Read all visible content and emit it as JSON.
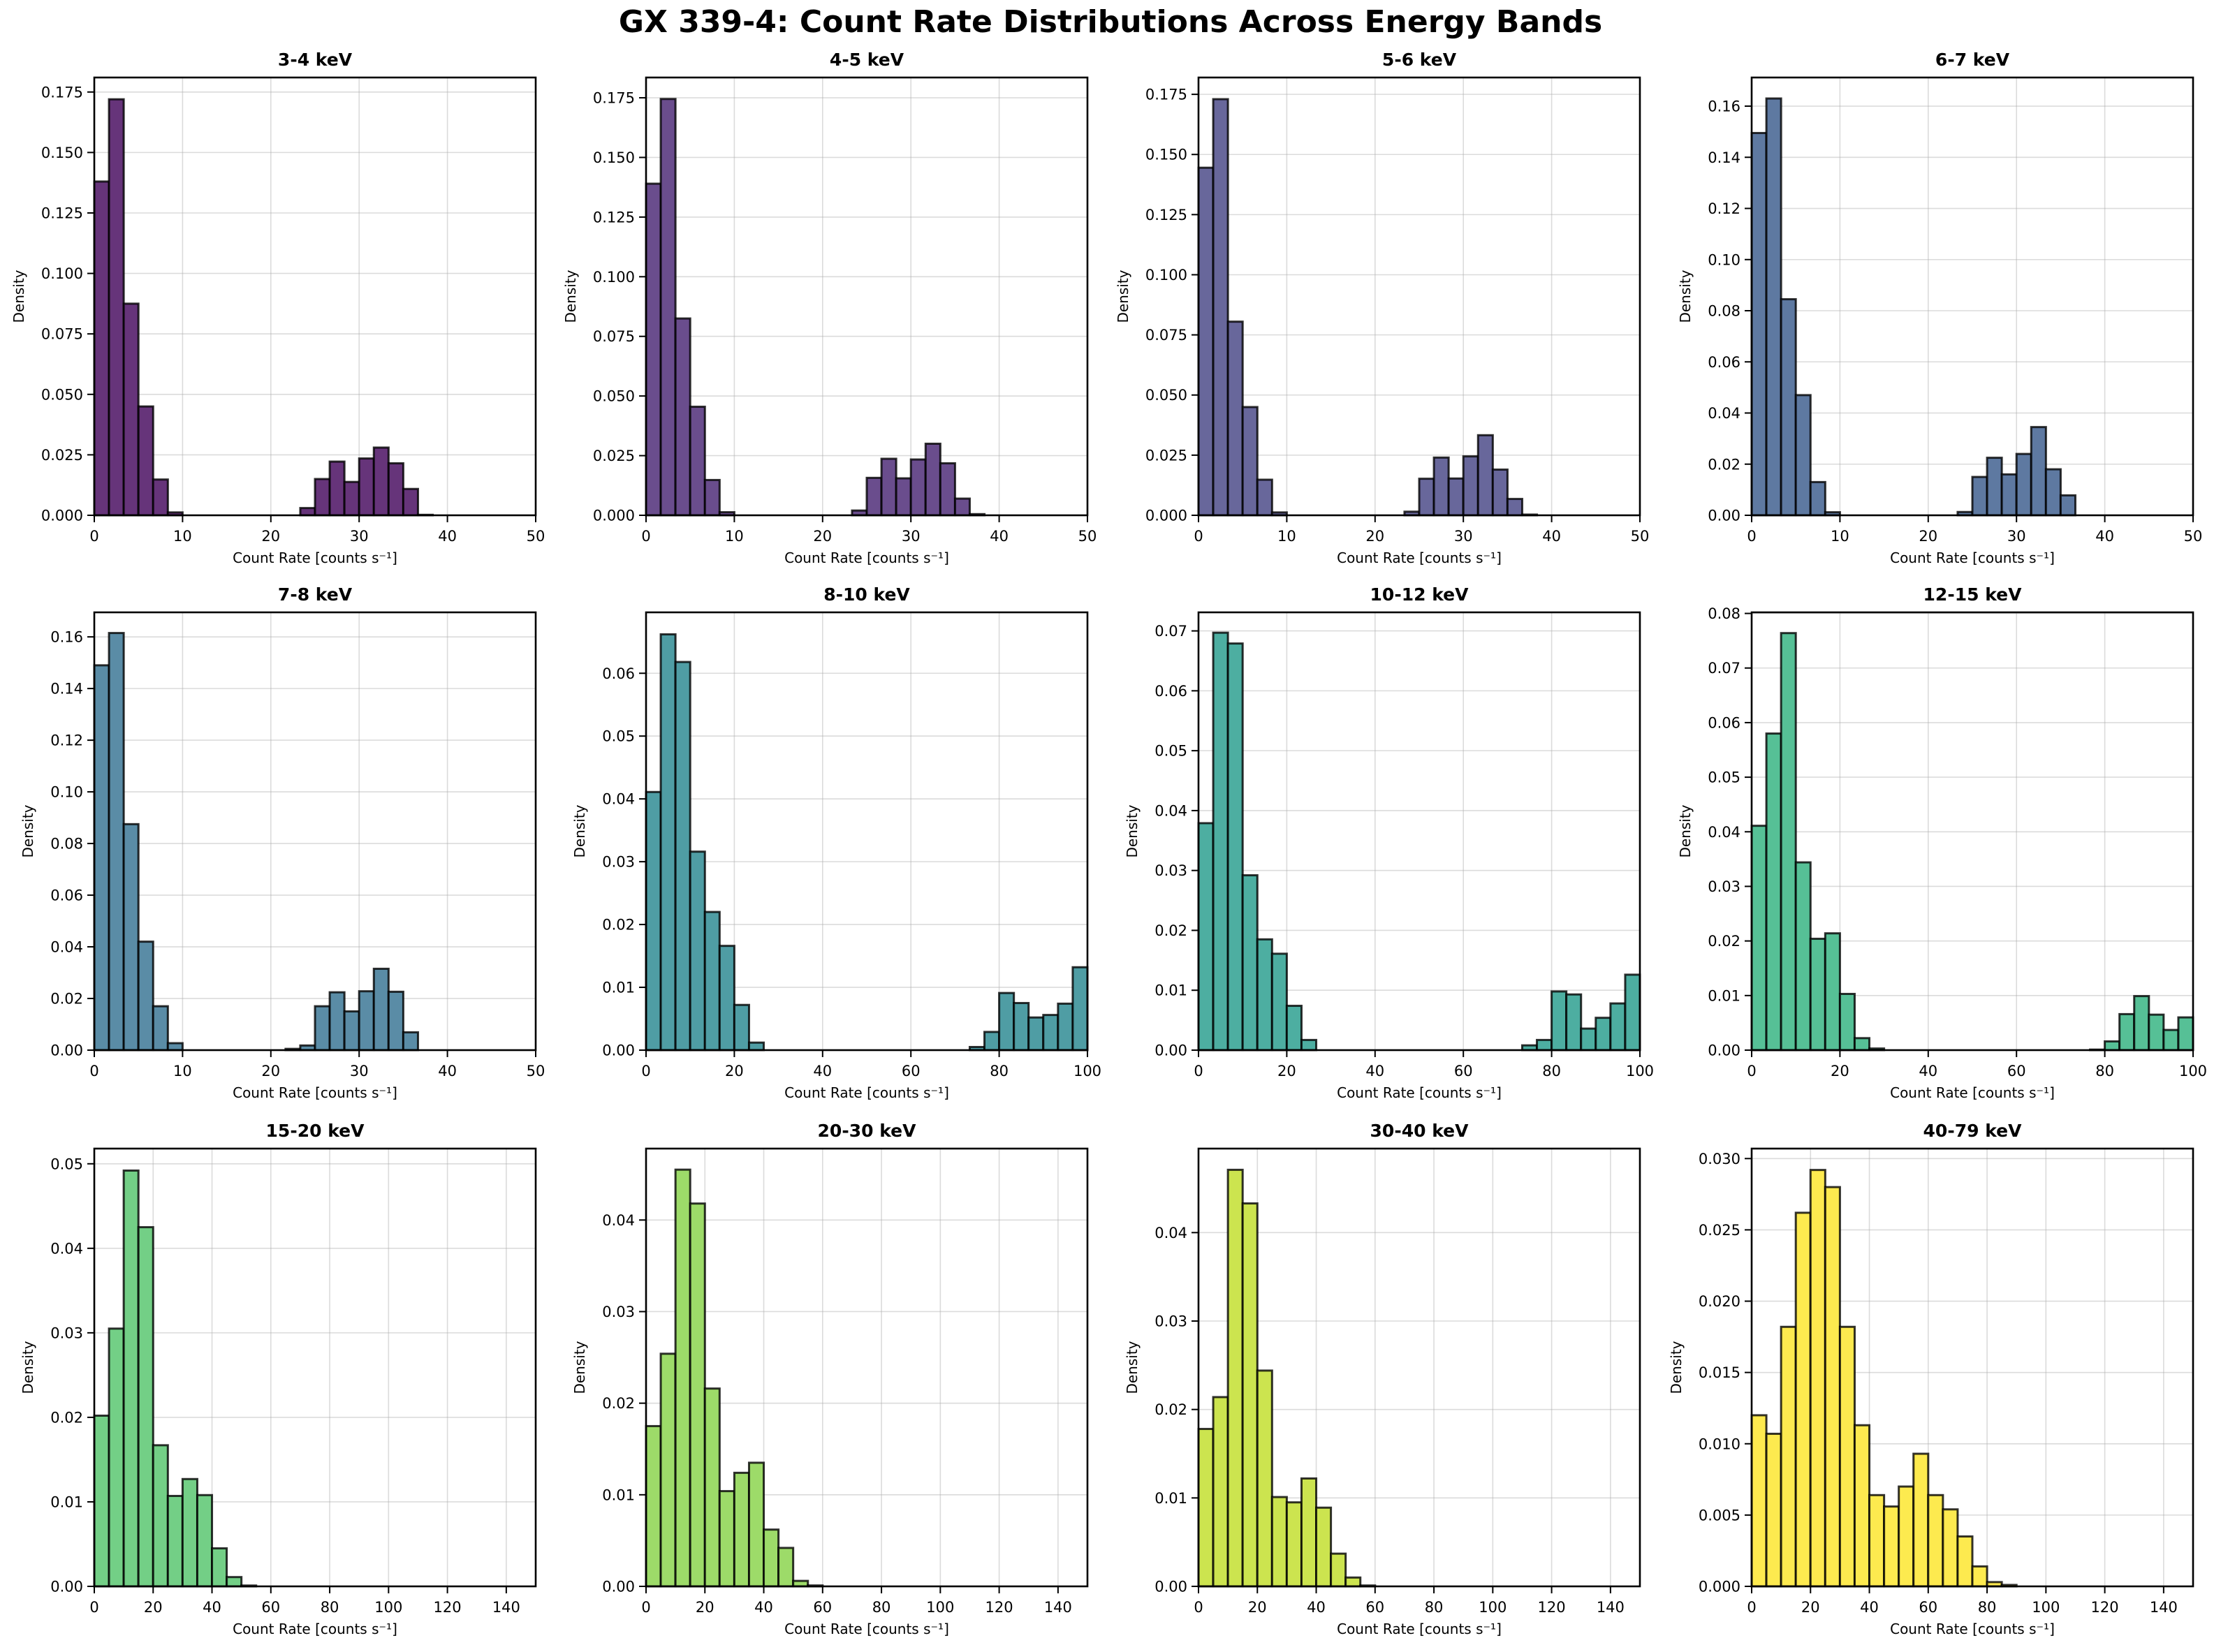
{
  "figure": {
    "title": "GX 339-4: Count Rate Distributions Across Energy Bands"
  },
  "chart_data": [
    {
      "type": "bar",
      "subtype": "histogram",
      "title": "3-4 keV",
      "xlabel": "Count Rate [counts s⁻¹]",
      "ylabel": "Density",
      "color": "#66347a",
      "xlim": [
        0,
        50
      ],
      "ylim": [
        0,
        0.181
      ],
      "xticks": [
        0,
        10,
        20,
        30,
        40,
        50
      ],
      "xtick_labels": [
        "0",
        "10",
        "20",
        "30",
        "40",
        "50"
      ],
      "yticks": [
        0,
        0.025,
        0.05,
        0.075,
        0.1,
        0.125,
        0.15,
        0.175
      ],
      "ytick_labels": [
        "0.000",
        "0.025",
        "0.050",
        "0.075",
        "0.100",
        "0.125",
        "0.150",
        "0.175"
      ],
      "grid": true,
      "bin_width": 1.6667,
      "bin_start": 0,
      "values": [
        0.138,
        0.172,
        0.0875,
        0.045,
        0.0148,
        0.0012,
        0,
        0,
        0,
        0,
        0,
        0,
        0,
        0,
        0.003,
        0.015,
        0.0222,
        0.0138,
        0.0235,
        0.028,
        0.0215,
        0.0109,
        0.0002
      ]
    },
    {
      "type": "bar",
      "subtype": "histogram",
      "title": "4-5 keV",
      "xlabel": "Count Rate [counts s⁻¹]",
      "ylabel": "Density",
      "color": "#6a4d8d",
      "xlim": [
        0,
        50
      ],
      "ylim": [
        0,
        0.1835
      ],
      "xticks": [
        0,
        10,
        20,
        30,
        40,
        50
      ],
      "xtick_labels": [
        "0",
        "10",
        "20",
        "30",
        "40",
        "50"
      ],
      "yticks": [
        0,
        0.025,
        0.05,
        0.075,
        0.1,
        0.125,
        0.15,
        0.175
      ],
      "ytick_labels": [
        "0.000",
        "0.025",
        "0.050",
        "0.075",
        "0.100",
        "0.125",
        "0.150",
        "0.175"
      ],
      "grid": true,
      "bin_width": 1.6667,
      "bin_start": 0,
      "values": [
        0.139,
        0.1745,
        0.0825,
        0.0455,
        0.0148,
        0.0013,
        0,
        0,
        0,
        0,
        0,
        0,
        0,
        0,
        0.002,
        0.0157,
        0.0237,
        0.0155,
        0.0234,
        0.03,
        0.0218,
        0.007,
        0.0005
      ]
    },
    {
      "type": "bar",
      "subtype": "histogram",
      "title": "5-6 keV",
      "xlabel": "Count Rate [counts s⁻¹]",
      "ylabel": "Density",
      "color": "#68679b",
      "xlim": [
        0,
        50
      ],
      "ylim": [
        0,
        0.182
      ],
      "xticks": [
        0,
        10,
        20,
        30,
        40,
        50
      ],
      "xtick_labels": [
        "0",
        "10",
        "20",
        "30",
        "40",
        "50"
      ],
      "yticks": [
        0,
        0.025,
        0.05,
        0.075,
        0.1,
        0.125,
        0.15,
        0.175
      ],
      "ytick_labels": [
        "0.000",
        "0.025",
        "0.050",
        "0.075",
        "0.100",
        "0.125",
        "0.150",
        "0.175"
      ],
      "grid": true,
      "bin_width": 1.6667,
      "bin_start": 0,
      "values": [
        0.1445,
        0.173,
        0.0805,
        0.045,
        0.0148,
        0.0012,
        0,
        0,
        0,
        0,
        0,
        0,
        0,
        0,
        0.0015,
        0.0152,
        0.024,
        0.0153,
        0.0245,
        0.0333,
        0.019,
        0.0068,
        0.0003
      ]
    },
    {
      "type": "bar",
      "subtype": "histogram",
      "title": "6-7 keV",
      "xlabel": "Count Rate [counts s⁻¹]",
      "ylabel": "Density",
      "color": "#5e79a1",
      "xlim": [
        0,
        50
      ],
      "ylim": [
        0,
        0.1712
      ],
      "xticks": [
        0,
        10,
        20,
        30,
        40,
        50
      ],
      "xtick_labels": [
        "0",
        "10",
        "20",
        "30",
        "40",
        "50"
      ],
      "yticks": [
        0,
        0.02,
        0.04,
        0.06,
        0.08,
        0.1,
        0.12,
        0.14,
        0.16
      ],
      "ytick_labels": [
        "0.00",
        "0.02",
        "0.04",
        "0.06",
        "0.08",
        "0.10",
        "0.12",
        "0.14",
        "0.16"
      ],
      "grid": true,
      "bin_width": 1.6667,
      "bin_start": 0,
      "values": [
        0.1495,
        0.163,
        0.0845,
        0.047,
        0.013,
        0.0012,
        0,
        0,
        0,
        0,
        0,
        0,
        0,
        0,
        0.0013,
        0.015,
        0.0225,
        0.016,
        0.024,
        0.0345,
        0.018,
        0.0078
      ]
    },
    {
      "type": "bar",
      "subtype": "histogram",
      "title": "7-8 keV",
      "xlabel": "Count Rate [counts s⁻¹]",
      "ylabel": "Density",
      "color": "#5a8ca6",
      "xlim": [
        0,
        50
      ],
      "ylim": [
        0,
        0.1695
      ],
      "xticks": [
        0,
        10,
        20,
        30,
        40,
        50
      ],
      "xtick_labels": [
        "0",
        "10",
        "20",
        "30",
        "40",
        "50"
      ],
      "yticks": [
        0,
        0.02,
        0.04,
        0.06,
        0.08,
        0.1,
        0.12,
        0.14,
        0.16
      ],
      "ytick_labels": [
        "0.00",
        "0.02",
        "0.04",
        "0.06",
        "0.08",
        "0.10",
        "0.12",
        "0.14",
        "0.16"
      ],
      "grid": true,
      "bin_width": 1.6667,
      "bin_start": 0,
      "values": [
        0.149,
        0.1615,
        0.0875,
        0.042,
        0.017,
        0.0027,
        0,
        0,
        0,
        0,
        0,
        0,
        0,
        0.0005,
        0.0018,
        0.017,
        0.0224,
        0.015,
        0.0228,
        0.0315,
        0.0226,
        0.0069
      ]
    },
    {
      "type": "bar",
      "subtype": "histogram",
      "title": "8-10 keV",
      "xlabel": "Count Rate [counts s⁻¹]",
      "ylabel": "Density",
      "color": "#4f9da4",
      "xlim": [
        0,
        100
      ],
      "ylim": [
        0,
        0.0697
      ],
      "xticks": [
        0,
        20,
        40,
        60,
        80,
        100
      ],
      "xtick_labels": [
        "0",
        "20",
        "40",
        "60",
        "80",
        "100"
      ],
      "yticks": [
        0,
        0.01,
        0.02,
        0.03,
        0.04,
        0.05,
        0.06
      ],
      "ytick_labels": [
        "0.00",
        "0.01",
        "0.02",
        "0.03",
        "0.04",
        "0.05",
        "0.06"
      ],
      "grid": true,
      "bin_width": 3.3333,
      "bin_start": 0,
      "values": [
        0.0411,
        0.0662,
        0.0618,
        0.0316,
        0.022,
        0.0166,
        0.0072,
        0.0012,
        0,
        0,
        0,
        0,
        0,
        0,
        0,
        0,
        0,
        0,
        0,
        0,
        0,
        0,
        0.0005,
        0.0029,
        0.0091,
        0.0075,
        0.0052,
        0.0056,
        0.0074,
        0.0132
      ]
    },
    {
      "type": "bar",
      "subtype": "histogram",
      "title": "10-12 keV",
      "xlabel": "Count Rate [counts s⁻¹]",
      "ylabel": "Density",
      "color": "#4daea1",
      "xlim": [
        0,
        100
      ],
      "ylim": [
        0,
        0.0731
      ],
      "xticks": [
        0,
        20,
        40,
        60,
        80,
        100
      ],
      "xtick_labels": [
        "0",
        "20",
        "40",
        "60",
        "80",
        "100"
      ],
      "yticks": [
        0,
        0.01,
        0.02,
        0.03,
        0.04,
        0.05,
        0.06,
        0.07
      ],
      "ytick_labels": [
        "0.00",
        "0.01",
        "0.02",
        "0.03",
        "0.04",
        "0.05",
        "0.06",
        "0.07"
      ],
      "grid": true,
      "bin_width": 3.3333,
      "bin_start": 0,
      "values": [
        0.0379,
        0.0697,
        0.0679,
        0.0292,
        0.0185,
        0.0161,
        0.0074,
        0.0017,
        0,
        0,
        0,
        0,
        0,
        0,
        0,
        0,
        0,
        0,
        0,
        0,
        0,
        0,
        0.0008,
        0.0017,
        0.0098,
        0.0093,
        0.0036,
        0.0054,
        0.0078,
        0.0126
      ]
    },
    {
      "type": "bar",
      "subtype": "histogram",
      "title": "12-15 keV",
      "xlabel": "Count Rate [counts s⁻¹]",
      "ylabel": "Density",
      "color": "#56c096",
      "xlim": [
        0,
        100
      ],
      "ylim": [
        0,
        0.0802
      ],
      "xticks": [
        0,
        20,
        40,
        60,
        80,
        100
      ],
      "xtick_labels": [
        "0",
        "20",
        "40",
        "60",
        "80",
        "100"
      ],
      "yticks": [
        0,
        0.01,
        0.02,
        0.03,
        0.04,
        0.05,
        0.06,
        0.07,
        0.08
      ],
      "ytick_labels": [
        "0.00",
        "0.01",
        "0.02",
        "0.03",
        "0.04",
        "0.05",
        "0.06",
        "0.07",
        "0.08"
      ],
      "grid": true,
      "bin_width": 3.3333,
      "bin_start": 0,
      "values": [
        0.0411,
        0.058,
        0.0764,
        0.0344,
        0.0204,
        0.0214,
        0.0103,
        0.0022,
        0.0003,
        0,
        0,
        0,
        0,
        0,
        0,
        0,
        0,
        0,
        0,
        0,
        0,
        0,
        0,
        0.0001,
        0.0016,
        0.0066,
        0.0099,
        0.0065,
        0.0037,
        0.006
      ]
    },
    {
      "type": "bar",
      "subtype": "histogram",
      "title": "15-20 keV",
      "xlabel": "Count Rate [counts s⁻¹]",
      "ylabel": "Density",
      "color": "#73cf86",
      "xlim": [
        0,
        150
      ],
      "ylim": [
        0,
        0.0518
      ],
      "xticks": [
        0,
        20,
        40,
        60,
        80,
        100,
        120,
        140
      ],
      "xtick_labels": [
        "0",
        "20",
        "40",
        "60",
        "80",
        "100",
        "120",
        "140"
      ],
      "yticks": [
        0,
        0.01,
        0.02,
        0.03,
        0.04,
        0.05
      ],
      "ytick_labels": [
        "0.00",
        "0.01",
        "0.02",
        "0.03",
        "0.04",
        "0.05"
      ],
      "grid": true,
      "bin_width": 5,
      "bin_start": 0,
      "values": [
        0.0202,
        0.0305,
        0.0492,
        0.0425,
        0.0167,
        0.0107,
        0.0127,
        0.0108,
        0.0045,
        0.0011,
        0.0001
      ]
    },
    {
      "type": "bar",
      "subtype": "histogram",
      "title": "20-30 keV",
      "xlabel": "Count Rate [counts s⁻¹]",
      "ylabel": "Density",
      "color": "#9ddb69",
      "xlim": [
        0,
        150
      ],
      "ylim": [
        0,
        0.0478
      ],
      "xticks": [
        0,
        20,
        40,
        60,
        80,
        100,
        120,
        140
      ],
      "xtick_labels": [
        "0",
        "20",
        "40",
        "60",
        "80",
        "100",
        "120",
        "140"
      ],
      "yticks": [
        0,
        0.01,
        0.02,
        0.03,
        0.04
      ],
      "ytick_labels": [
        "0.00",
        "0.01",
        "0.02",
        "0.03",
        "0.04"
      ],
      "grid": true,
      "bin_width": 5,
      "bin_start": 0,
      "values": [
        0.0175,
        0.0254,
        0.0455,
        0.0418,
        0.0216,
        0.0104,
        0.0124,
        0.0135,
        0.0062,
        0.0042,
        0.0006,
        0.0001
      ]
    },
    {
      "type": "bar",
      "subtype": "histogram",
      "title": "30-40 keV",
      "xlabel": "Count Rate [counts s⁻¹]",
      "ylabel": "Density",
      "color": "#cce44f",
      "xlim": [
        0,
        150
      ],
      "ylim": [
        0,
        0.0495
      ],
      "xticks": [
        0,
        20,
        40,
        60,
        80,
        100,
        120,
        140
      ],
      "xtick_labels": [
        "0",
        "20",
        "40",
        "60",
        "80",
        "100",
        "120",
        "140"
      ],
      "yticks": [
        0,
        0.01,
        0.02,
        0.03,
        0.04
      ],
      "ytick_labels": [
        "0.00",
        "0.01",
        "0.02",
        "0.03",
        "0.04"
      ],
      "grid": true,
      "bin_width": 5,
      "bin_start": 0,
      "values": [
        0.0178,
        0.0214,
        0.0471,
        0.0433,
        0.0244,
        0.0101,
        0.0095,
        0.0122,
        0.0089,
        0.0037,
        0.001,
        0.0001
      ]
    },
    {
      "type": "bar",
      "subtype": "histogram",
      "title": "40-79 keV",
      "xlabel": "Count Rate [counts s⁻¹]",
      "ylabel": "Density",
      "color": "#fdea4f",
      "xlim": [
        0,
        150
      ],
      "ylim": [
        0,
        0.0307
      ],
      "xticks": [
        0,
        20,
        40,
        60,
        80,
        100,
        120,
        140
      ],
      "xtick_labels": [
        "0",
        "20",
        "40",
        "60",
        "80",
        "100",
        "120",
        "140"
      ],
      "yticks": [
        0,
        0.005,
        0.01,
        0.015,
        0.02,
        0.025,
        0.03
      ],
      "ytick_labels": [
        "0.000",
        "0.005",
        "0.010",
        "0.015",
        "0.020",
        "0.025",
        "0.030"
      ],
      "grid": true,
      "bin_width": 5,
      "bin_start": 0,
      "values": [
        0.012,
        0.0107,
        0.0182,
        0.0262,
        0.0292,
        0.028,
        0.0182,
        0.0113,
        0.0064,
        0.0056,
        0.007,
        0.0093,
        0.0064,
        0.0054,
        0.0035,
        0.0014,
        0.0003,
        0.0001
      ]
    }
  ]
}
